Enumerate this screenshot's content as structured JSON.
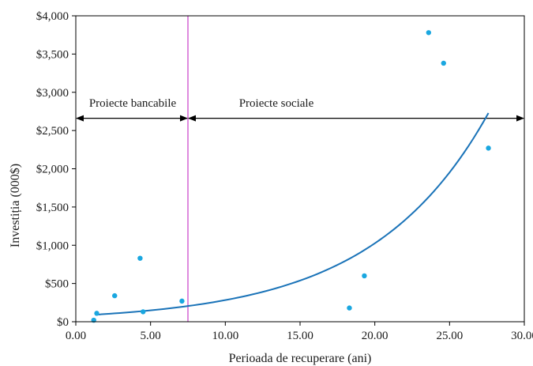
{
  "chart_data": {
    "type": "scatter",
    "xlabel": "Perioada de recuperare (ani)",
    "ylabel": "Investiția (000$)",
    "xlim": [
      0,
      30
    ],
    "ylim": [
      0,
      4000
    ],
    "x_ticks": [
      "0.00",
      "5.00",
      "10.00",
      "15.00",
      "20.00",
      "25.00",
      "30.00"
    ],
    "y_ticks": [
      "$0",
      "$500",
      "$1,000",
      "$1,500",
      "$2,000",
      "$2,500",
      "$3,000",
      "$3,500",
      "$4,000"
    ],
    "grid": false,
    "colors": {
      "points": "#1aa7e0",
      "trend": "#1a73b8",
      "divider": "#c83cc8",
      "axis": "#000000"
    },
    "series": [
      {
        "points": [
          {
            "x": 1.2,
            "y": 20
          },
          {
            "x": 1.4,
            "y": 110
          },
          {
            "x": 2.6,
            "y": 340
          },
          {
            "x": 4.3,
            "y": 830
          },
          {
            "x": 4.5,
            "y": 130
          },
          {
            "x": 7.1,
            "y": 270
          },
          {
            "x": 18.3,
            "y": 180
          },
          {
            "x": 19.3,
            "y": 600
          },
          {
            "x": 23.6,
            "y": 3780
          },
          {
            "x": 24.6,
            "y": 3380
          },
          {
            "x": 27.6,
            "y": 2270
          }
        ]
      }
    ],
    "trendline": {
      "type": "exponential",
      "a": 78,
      "b": 0.1288,
      "x_range": [
        1.3,
        27.6
      ]
    },
    "divider_x": 7.5,
    "regions": [
      {
        "label": "Proiecte bancabile",
        "x_from": 0,
        "x_to": 7.5,
        "y": 2660
      },
      {
        "label": "Proiecte sociale",
        "x_from": 7.5,
        "x_to": 30,
        "y": 2660
      }
    ]
  }
}
